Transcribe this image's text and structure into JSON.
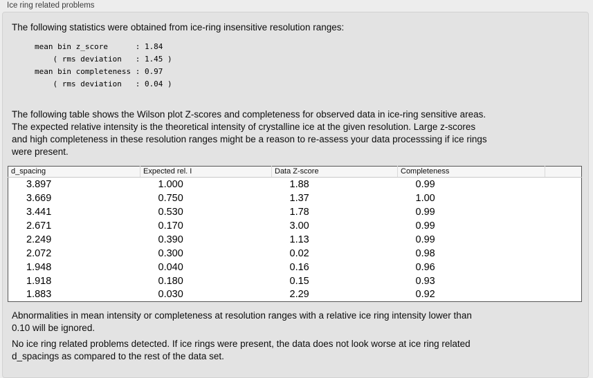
{
  "panel_title": "Ice ring related problems",
  "intro": "The following statistics were obtained from ice-ring insensitive resolution ranges:",
  "stats_block": "mean bin z_score      : 1.84\n    ( rms deviation   : 1.45 )\nmean bin completeness : 0.97\n    ( rms deviation   : 0.04 )",
  "description": "The following table shows the Wilson plot Z-scores and completeness for observed data in ice-ring sensitive areas.\nThe expected relative intensity is the theoretical intensity of crystalline ice at the given resolution. Large z-scores\nand high completeness in these resolution ranges might be a reason to re-assess your data processsing if ice rings\nwere present.",
  "table": {
    "columns": [
      "d_spacing",
      "Expected rel. I",
      "Data Z-score",
      "Completeness",
      ""
    ],
    "rows": [
      [
        "3.897",
        "1.000",
        "1.88",
        "0.99"
      ],
      [
        "3.669",
        "0.750",
        "1.37",
        "1.00"
      ],
      [
        "3.441",
        "0.530",
        "1.78",
        "0.99"
      ],
      [
        "2.671",
        "0.170",
        "3.00",
        "0.99"
      ],
      [
        "2.249",
        "0.390",
        "1.13",
        "0.99"
      ],
      [
        "2.072",
        "0.300",
        "0.02",
        "0.98"
      ],
      [
        "1.948",
        "0.040",
        "0.16",
        "0.96"
      ],
      [
        "1.918",
        "0.180",
        "0.15",
        "0.93"
      ],
      [
        "1.883",
        "0.030",
        "2.29",
        "0.92"
      ]
    ]
  },
  "footnote": "Abnormalities in mean intensity or completeness at resolution ranges with a relative ice ring intensity lower than\n0.10 will be ignored.",
  "conclusion": "No ice ring related problems detected. If ice rings were present, the data does not look worse at ice ring related\nd_spacings as compared to the rest of the data set.",
  "colors": {
    "page_bg": "#ededed",
    "box_bg": "#e3e3e3",
    "box_border": "#d2d2d2",
    "table_border": "#565656",
    "header_bg": "#f6f6f6",
    "text": "#0c0c0c",
    "title_text": "#3c3c3c"
  }
}
